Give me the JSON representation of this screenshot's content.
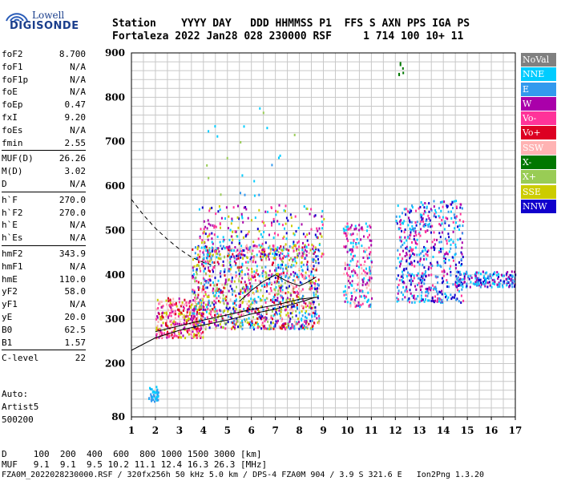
{
  "logo": {
    "top": "Lowell",
    "bottom": "DIGISONDE"
  },
  "header": {
    "line1": "Station    YYYY DAY   DDD HHMMSS P1  FFS S AXN PPS IGA PS",
    "line2": "Fortaleza 2022 Jan28 028 230000 RSF     1 714 100 10+ 11"
  },
  "params": {
    "group1": [
      {
        "label": "foF2",
        "value": "8.700"
      },
      {
        "label": "foF1",
        "value": "N/A"
      },
      {
        "label": "foF1p",
        "value": "N/A"
      },
      {
        "label": "foE",
        "value": "N/A"
      },
      {
        "label": "foEp",
        "value": "0.47"
      },
      {
        "label": "fxI",
        "value": "9.20"
      },
      {
        "label": "foEs",
        "value": "N/A"
      },
      {
        "label": "fmin",
        "value": "2.55"
      }
    ],
    "group2": [
      {
        "label": "MUF(D)",
        "value": "26.26"
      },
      {
        "label": "M(D)",
        "value": "3.02"
      },
      {
        "label": "D",
        "value": "N/A"
      }
    ],
    "group3": [
      {
        "label": "h`F",
        "value": "270.0"
      },
      {
        "label": "h`F2",
        "value": "270.0"
      },
      {
        "label": "h`E",
        "value": "N/A"
      },
      {
        "label": "h`Es",
        "value": "N/A"
      }
    ],
    "group4": [
      {
        "label": "hmF2",
        "value": "343.9"
      },
      {
        "label": "hmF1",
        "value": "N/A"
      },
      {
        "label": "hmE",
        "value": "110.0"
      },
      {
        "label": "yF2",
        "value": "58.0"
      },
      {
        "label": "yF1",
        "value": "N/A"
      },
      {
        "label": "yE",
        "value": "20.0"
      },
      {
        "label": "B0",
        "value": "62.5"
      },
      {
        "label": "B1",
        "value": "1.57"
      }
    ],
    "group5": [
      {
        "label": "C-level",
        "value": "22"
      }
    ]
  },
  "auto": {
    "line1": "Auto:",
    "line2": "Artist5",
    "line3": "500200"
  },
  "legend": [
    {
      "label": "NoVal",
      "color": "#808080",
      "text_color": "#ffffff"
    },
    {
      "label": "NNE",
      "color": "#00ccff",
      "text_color": "#ffffff"
    },
    {
      "label": "E",
      "color": "#3399ee",
      "text_color": "#ffffff"
    },
    {
      "label": "W",
      "color": "#aa00aa",
      "text_color": "#ffffff"
    },
    {
      "label": "Vo-",
      "color": "#ff3399",
      "text_color": "#ffffff"
    },
    {
      "label": "Vo+",
      "color": "#dd0022",
      "text_color": "#ffffff"
    },
    {
      "label": "SSW",
      "color": "#ffb3b3",
      "text_color": "#ffffff"
    },
    {
      "label": "X-",
      "color": "#007700",
      "text_color": "#ffffff"
    },
    {
      "label": "X+",
      "color": "#99cc55",
      "text_color": "#ffffff"
    },
    {
      "label": "SSE",
      "color": "#cccc00",
      "text_color": "#ffffff"
    },
    {
      "label": "NNW",
      "color": "#1100cc",
      "text_color": "#ffffff"
    }
  ],
  "bottom": {
    "d_row": "D     100  200  400  600  800 1000 1500 3000 [km]",
    "muf_row": "MUF   9.1  9.1  9.5 10.2 11.1 12.4 16.3 26.3 [MHz]",
    "footer": "FZA0M_2022028230000.RSF / 320fx256h 50 kHz 5.0 km / DPS-4 FZA0M 904 / 3.9 S 321.6 E   Ion2Png 1.3.20"
  },
  "chart_data": {
    "type": "scatter",
    "title": "",
    "xlabel": "",
    "ylabel": "",
    "xlim": [
      1,
      17
    ],
    "ylim": [
      80,
      900
    ],
    "x_ticks": [
      1,
      2,
      3,
      4,
      5,
      6,
      7,
      8,
      9,
      10,
      11,
      12,
      13,
      14,
      15,
      16,
      17
    ],
    "y_ticks": [
      80,
      200,
      300,
      400,
      500,
      600,
      700,
      800,
      900
    ],
    "grid": true,
    "legend_position": "right",
    "clusters": [
      {
        "name": "E-region echo",
        "x": [
          1.7,
          2.1
        ],
        "y": [
          115,
          150
        ],
        "colors": [
          "#00ccff",
          "#3399ee"
        ],
        "count": 40
      },
      {
        "name": "F-trace low",
        "x": [
          2.0,
          4.0
        ],
        "y": [
          260,
          350
        ],
        "colors": [
          "#ff3399",
          "#ffb3b3",
          "#cccc00",
          "#dd0022",
          "#aa00aa"
        ],
        "count": 320
      },
      {
        "name": "F-trace main",
        "x": [
          3.5,
          8.8
        ],
        "y": [
          280,
          470
        ],
        "colors": [
          "#ffb3b3",
          "#cccc00",
          "#ff3399",
          "#aa00aa",
          "#dd0022",
          "#00ccff",
          "#1100cc",
          "#3399ee",
          "#99cc55"
        ],
        "count": 1300
      },
      {
        "name": "F-trace upper",
        "x": [
          3.8,
          9.0
        ],
        "y": [
          440,
          560
        ],
        "colors": [
          "#aa00aa",
          "#ff3399",
          "#1100cc",
          "#00ccff",
          "#cccc00"
        ],
        "count": 250
      },
      {
        "name": "spread 10-11",
        "x": [
          9.8,
          11.0
        ],
        "y": [
          330,
          520
        ],
        "colors": [
          "#00ccff",
          "#ffb3b3",
          "#ff3399",
          "#aa00aa"
        ],
        "count": 220
      },
      {
        "name": "spread high freq",
        "x": [
          12.0,
          14.8
        ],
        "y": [
          340,
          570
        ],
        "colors": [
          "#aa00aa",
          "#1100cc",
          "#3399ee",
          "#00ccff",
          "#ff3399"
        ],
        "count": 520
      },
      {
        "name": "tail",
        "x": [
          14.5,
          17.0
        ],
        "y": [
          375,
          410
        ],
        "colors": [
          "#3399ee",
          "#1100cc",
          "#aa00aa",
          "#00ccff"
        ],
        "count": 180
      },
      {
        "name": "sparse oblique",
        "x": [
          4.0,
          7.8
        ],
        "y": [
          580,
          780
        ],
        "colors": [
          "#00ccff",
          "#99cc55",
          "#3399ee"
        ],
        "count": 22
      },
      {
        "name": "high isolated",
        "x": [
          12.1,
          12.3
        ],
        "y": [
          850,
          880
        ],
        "colors": [
          "#007700"
        ],
        "count": 6
      }
    ],
    "curves": [
      {
        "name": "o-trace lower",
        "style": "solid",
        "x": [
          2.0,
          3.0,
          4.0,
          5.0,
          6.0,
          7.0,
          8.0,
          8.8
        ],
        "y": [
          272,
          285,
          298,
          310,
          322,
          332,
          345,
          350
        ]
      },
      {
        "name": "profile",
        "style": "solid",
        "x": [
          1.0,
          2.0,
          3.0,
          4.0,
          5.0,
          6.0,
          7.0,
          8.0,
          8.7
        ],
        "y": [
          230,
          258,
          275,
          287,
          298,
          312,
          323,
          338,
          350
        ]
      },
      {
        "name": "MUF parabola",
        "style": "dashed",
        "x": [
          1.0,
          1.5,
          2.0,
          2.5,
          3.0,
          3.5,
          4.0,
          4.5
        ],
        "y": [
          570,
          535,
          505,
          480,
          458,
          440,
          428,
          420
        ]
      },
      {
        "name": "cusp",
        "style": "solid",
        "x": [
          5.5,
          6.0,
          6.5,
          7.0,
          7.5,
          8.0,
          8.4,
          8.7
        ],
        "y": [
          340,
          365,
          385,
          400,
          385,
          375,
          385,
          395
        ]
      }
    ]
  }
}
